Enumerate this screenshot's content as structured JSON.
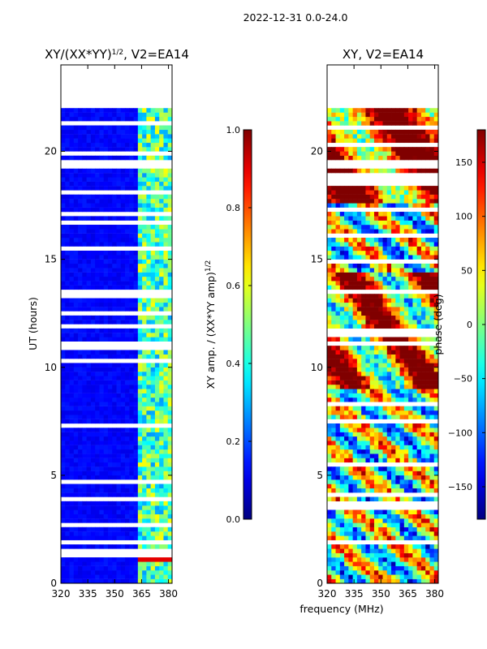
{
  "suptitle": "2022-12-31 0.0-24.0",
  "chart_data": [
    {
      "type": "heatmap",
      "title": "XY/(XX*YY)",
      "title_sup": "1/2",
      "title_suffix": ", V2=EA14",
      "xlabel": "",
      "ylabel": "UT (hours)",
      "xlim": [
        320,
        382
      ],
      "ylim": [
        0,
        24
      ],
      "xticks": [
        320,
        335,
        350,
        365,
        380
      ],
      "yticks": [
        0,
        5,
        10,
        15,
        20
      ],
      "data_extent_hours": [
        0,
        22
      ],
      "colorbar": {
        "label": "XY amp. / (XX*YY amp)",
        "label_sup": "1/2",
        "range": [
          0.0,
          1.0
        ],
        "ticks": [
          "0.0",
          "0.2",
          "0.4",
          "0.6",
          "0.8",
          "1.0"
        ],
        "colormap": "jet"
      },
      "description_values": {
        "low_band_level": 0.1,
        "high_band_level": 0.45,
        "high_band_start_mhz": 362
      }
    },
    {
      "type": "heatmap",
      "title": "XY, V2=EA14",
      "xlabel": "frequency (MHz)",
      "ylabel": "",
      "xlim": [
        320,
        382
      ],
      "ylim": [
        0,
        24
      ],
      "xticks": [
        320,
        335,
        350,
        365,
        380
      ],
      "yticks": [
        0,
        5,
        10,
        15,
        20
      ],
      "data_extent_hours": [
        0,
        22
      ],
      "colorbar": {
        "label": "phase (deg)",
        "range": [
          -180,
          180
        ],
        "ticks": [
          "−150",
          "−100",
          "−50",
          "0",
          "50",
          "100",
          "150"
        ],
        "tick_values": [
          -150,
          -100,
          -50,
          0,
          50,
          100,
          150
        ],
        "colormap": "jet"
      }
    }
  ]
}
